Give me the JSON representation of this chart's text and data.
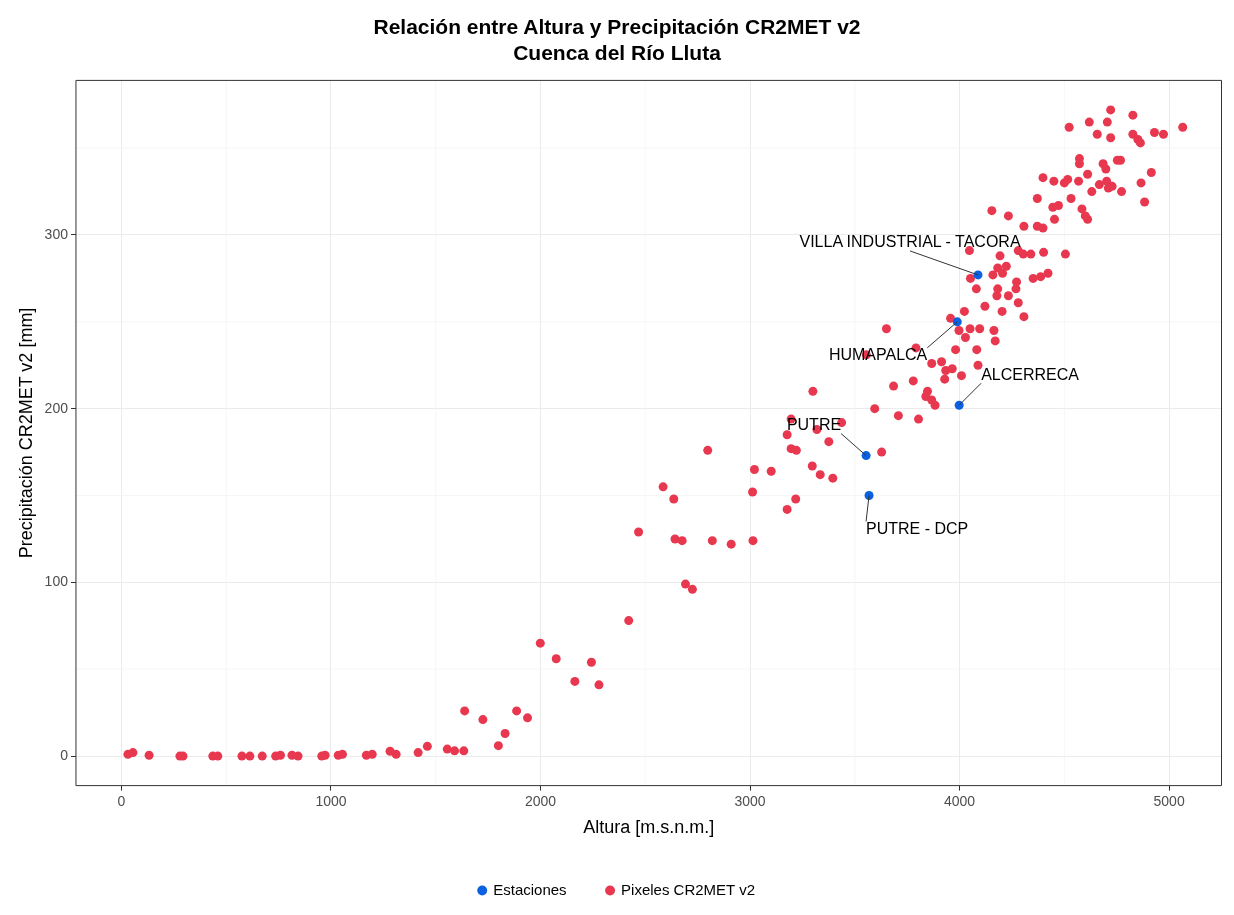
{
  "chart_data": {
    "type": "scatter",
    "title": "Relación entre Altura y Precipitación CR2MET v2\nCuenca del Río Lluta",
    "xlabel": "Altura [m.s.n.m.]",
    "ylabel": "Precipitación CR2MET v2 [mm]",
    "xlim": [
      -217,
      5250
    ],
    "ylim": [
      -17,
      389
    ],
    "xticks": [
      0,
      1000,
      2000,
      3000,
      4000,
      5000
    ],
    "yticks": [
      0,
      100,
      200,
      300
    ],
    "grid": true,
    "legend": "bottom",
    "marker": "circle",
    "series": [
      {
        "name": "Estaciones",
        "color": "#0b61e0",
        "x": [
          4088,
          3989,
          3998,
          3554,
          3568
        ],
        "values": [
          277,
          250,
          202,
          173,
          150
        ]
      },
      {
        "name": "Pixeles CR2MET v2",
        "color": "#e8384f",
        "x": [
          31,
          55,
          132,
          279,
          294,
          436,
          460,
          575,
          613,
          672,
          736,
          759,
          814,
          843,
          956,
          972,
          1035,
          1055,
          1169,
          1197,
          1282,
          1311,
          1416,
          1460,
          1555,
          1590,
          1634,
          1638,
          1725,
          1799,
          1831,
          1886,
          1938,
          1999,
          2075,
          2243,
          2164,
          2279,
          2421,
          2468,
          2585,
          2636,
          2642,
          2676,
          2692,
          2725,
          2798,
          2820,
          2910,
          3014,
          3012,
          3021,
          3101,
          3300,
          3196,
          3319,
          3177,
          3437,
          3376,
          3196,
          3221,
          3297,
          3335,
          3395,
          3218,
          3177,
          3628,
          3595,
          3708,
          3804,
          3685,
          3779,
          3847,
          3839,
          3867,
          3883,
          3929,
          3934,
          3965,
          3914,
          3867,
          3792,
          3981,
          4009,
          4082,
          4088,
          4028,
          4170,
          3651,
          3555,
          4050,
          4096,
          4164,
          4721,
          4827,
          4523,
          4619,
          4705,
          5065,
          4657,
          4721,
          4827,
          4851,
          4863,
          4930,
          4973,
          4572,
          4572,
          4685,
          4698,
          4753,
          4768,
          4611,
          4915,
          4398,
          4450,
          4500,
          4516,
          4568,
          4702,
          4667,
          4710,
          4728,
          4866,
          4631,
          4773,
          4883,
          4371,
          4532,
          4154,
          4445,
          4472,
          4584,
          4600,
          4611,
          4233,
          4453,
          4307,
          4371,
          4398,
          4047,
          4193,
          4280,
          4304,
          4340,
          4401,
          4505,
          4223,
          4182,
          4205,
          4159,
          4052,
          4351,
          4387,
          4422,
          4272,
          4080,
          4182,
          4269,
          4178,
          4233,
          4280,
          4121,
          4203,
          4307,
          4023,
          3957,
          3997
        ],
        "values": [
          1,
          2,
          0.5,
          0,
          0,
          0,
          0,
          0,
          0,
          0,
          0,
          0.5,
          0.5,
          0,
          0,
          0.5,
          0.5,
          1,
          0.5,
          1,
          2.8,
          1,
          2,
          5.6,
          4,
          3,
          3,
          26,
          21,
          6,
          13,
          26,
          22,
          65,
          56,
          54,
          43,
          41,
          78,
          129,
          155,
          148,
          125,
          124,
          99,
          96,
          176,
          124,
          122,
          124,
          152,
          165,
          164,
          210,
          194,
          188,
          185,
          192,
          181,
          177,
          176,
          167,
          162,
          160,
          148,
          142,
          175,
          200,
          196,
          194,
          213,
          216,
          210,
          207,
          205,
          202,
          217,
          222,
          223,
          227,
          226,
          235,
          234,
          219,
          234,
          225,
          241,
          239,
          246,
          231,
          246,
          246,
          245,
          372,
          369,
          362,
          365,
          365,
          362,
          358,
          356,
          358,
          355,
          353,
          359,
          358,
          344,
          341,
          341,
          338,
          343,
          343,
          335,
          336,
          333,
          331,
          330,
          332,
          331,
          331,
          329,
          327,
          328,
          330,
          325,
          325,
          319,
          321,
          321,
          314,
          316,
          317,
          315,
          311,
          309,
          311,
          309,
          305,
          305,
          304,
          291,
          288,
          291,
          289,
          289,
          290,
          289,
          282,
          281,
          278,
          277,
          275,
          275,
          276,
          278,
          273,
          269,
          269,
          269,
          265,
          265,
          261,
          259,
          256,
          253,
          256,
          252,
          245
        ]
      }
    ],
    "annotations": [
      {
        "text": "VILLA INDUSTRIAL - TACORA",
        "x": 4088,
        "y": 277
      },
      {
        "text": "HUMAPALCA",
        "x": 3989,
        "y": 250
      },
      {
        "text": "ALCERRECA",
        "x": 3998,
        "y": 202
      },
      {
        "text": "PUTRE",
        "x": 3554,
        "y": 173
      },
      {
        "text": "PUTRE - DCP",
        "x": 3568,
        "y": 150
      }
    ]
  }
}
